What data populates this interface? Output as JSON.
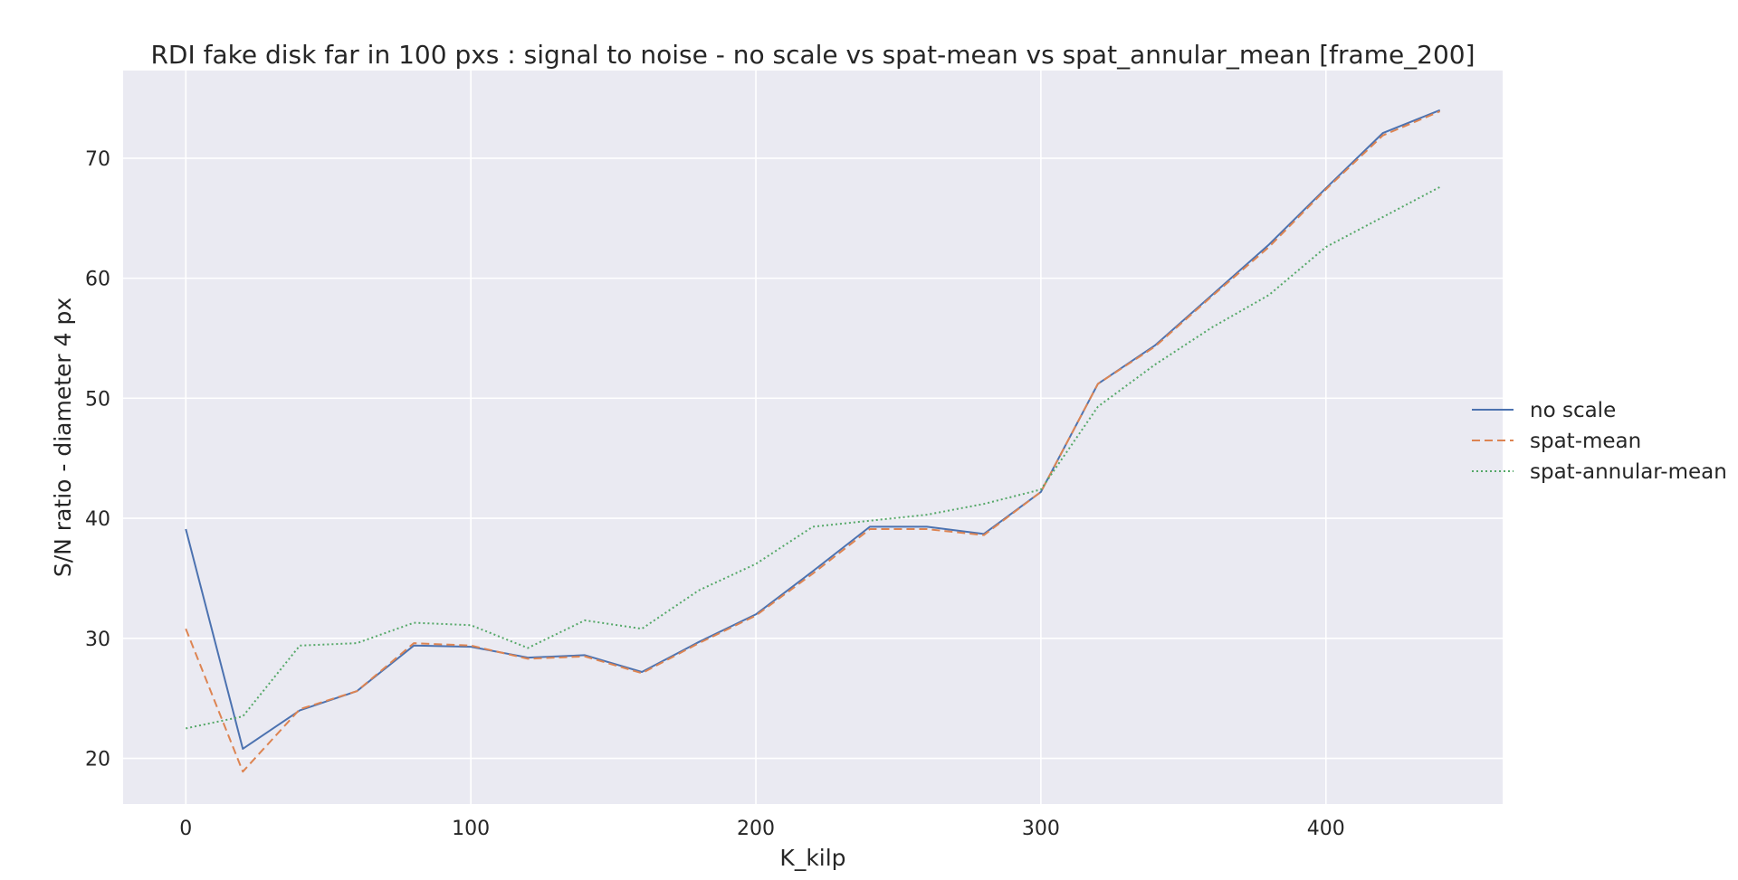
{
  "chart_data": {
    "type": "line",
    "title": "RDI fake disk far in 100 pxs : signal to noise - no scale vs spat-mean vs spat_annular_mean [frame_200]",
    "xlabel": "K_kilp",
    "ylabel": "S/N ratio - diameter 4 px",
    "xlim": [
      -22,
      462
    ],
    "ylim": [
      16.2,
      77.3
    ],
    "xticks": [
      0,
      100,
      200,
      300,
      400
    ],
    "yticks": [
      20,
      30,
      40,
      50,
      60,
      70
    ],
    "grid": true,
    "legend_position": "right",
    "x": [
      0,
      20,
      40,
      60,
      80,
      100,
      120,
      140,
      160,
      180,
      200,
      220,
      240,
      260,
      280,
      300,
      320,
      340,
      360,
      380,
      400,
      420,
      440
    ],
    "series": [
      {
        "name": "no scale",
        "color": "#4c72b0",
        "dash": "solid",
        "values": [
          39.1,
          20.8,
          24.0,
          25.6,
          29.4,
          29.3,
          28.4,
          28.6,
          27.2,
          29.7,
          32.0,
          35.6,
          39.3,
          39.3,
          38.7,
          42.2,
          51.2,
          54.4,
          58.6,
          62.8,
          67.5,
          72.1,
          74.0
        ]
      },
      {
        "name": "spat-mean",
        "color": "#dd8452",
        "dash": "dashed",
        "values": [
          30.8,
          18.9,
          24.1,
          25.6,
          29.6,
          29.4,
          28.3,
          28.5,
          27.1,
          29.6,
          31.9,
          35.4,
          39.1,
          39.1,
          38.6,
          42.2,
          51.2,
          54.3,
          58.5,
          62.6,
          67.4,
          71.9,
          73.9
        ]
      },
      {
        "name": "spat-annular-mean",
        "color": "#55a868",
        "dash": "dotted",
        "values": [
          22.5,
          23.5,
          29.4,
          29.6,
          31.3,
          31.1,
          29.2,
          31.5,
          30.8,
          34.0,
          36.2,
          39.3,
          39.8,
          40.3,
          41.2,
          42.4,
          49.3,
          52.8,
          55.9,
          58.6,
          62.6,
          65.1,
          67.6
        ]
      }
    ]
  }
}
